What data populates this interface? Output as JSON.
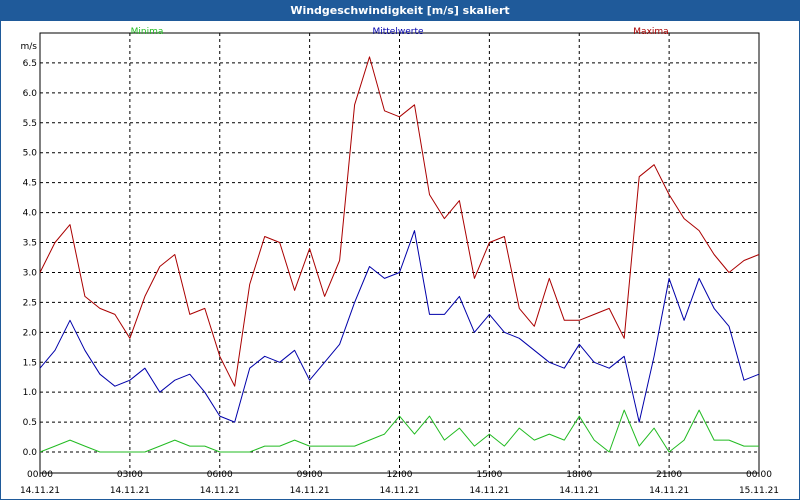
{
  "window": {
    "title": "Windgeschwindigkeit [m/s] skaliert"
  },
  "colors": {
    "titlebar": "#1f5a9a",
    "minima": "#22bb22",
    "mittelwerte": "#0000aa",
    "maxima": "#aa0000",
    "grid": "#000000"
  },
  "chart_data": {
    "type": "line",
    "title": "Windgeschwindigkeit [m/s] skaliert",
    "ylabel": "m/s",
    "ylim": [
      -0.35,
      7.0
    ],
    "yticks": [
      "0.0",
      "0.5",
      "1.0",
      "1.5",
      "2.0",
      "2.5",
      "3.0",
      "3.5",
      "4.0",
      "4.5",
      "5.0",
      "5.5",
      "6.0",
      "6.5"
    ],
    "xlim": [
      0,
      24
    ],
    "xticks": [
      {
        "time": "00:00",
        "date": "14.11.21"
      },
      {
        "time": "03:00",
        "date": "14.11.21"
      },
      {
        "time": "06:00",
        "date": "14.11.21"
      },
      {
        "time": "09:00",
        "date": "14.11.21"
      },
      {
        "time": "12:00",
        "date": "14.11.21"
      },
      {
        "time": "15:00",
        "date": "14.11.21"
      },
      {
        "time": "18:00",
        "date": "14.11.21"
      },
      {
        "time": "21:00",
        "date": "14.11.21"
      },
      {
        "time": "00:00",
        "date": "15.11.21"
      }
    ],
    "grid": true,
    "legend_position": "top",
    "x_hours": [
      0,
      0.5,
      1,
      1.5,
      2,
      2.5,
      3,
      3.5,
      4,
      4.5,
      5,
      5.5,
      6,
      6.5,
      7,
      7.5,
      8,
      8.5,
      9,
      9.5,
      10,
      10.5,
      11,
      11.5,
      12,
      12.5,
      13,
      13.5,
      14,
      14.5,
      15,
      15.5,
      16,
      16.5,
      17,
      17.5,
      18,
      18.5,
      19,
      19.5,
      20,
      20.5,
      21,
      21.5,
      22,
      22.5,
      23,
      23.5,
      24
    ],
    "series": [
      {
        "name": "Minima",
        "color": "#22bb22",
        "values": [
          0.0,
          0.1,
          0.2,
          0.1,
          0.0,
          0.0,
          0.0,
          0.0,
          0.1,
          0.2,
          0.1,
          0.1,
          0.0,
          0.0,
          0.0,
          0.1,
          0.1,
          0.2,
          0.1,
          0.1,
          0.1,
          0.1,
          0.2,
          0.3,
          0.6,
          0.3,
          0.6,
          0.2,
          0.4,
          0.1,
          0.3,
          0.1,
          0.4,
          0.2,
          0.3,
          0.2,
          0.6,
          0.2,
          0.0,
          0.7,
          0.1,
          0.4,
          0.0,
          0.2,
          0.7,
          0.2,
          0.2,
          0.1,
          0.1
        ]
      },
      {
        "name": "Mittelwerte",
        "color": "#0000aa",
        "values": [
          1.4,
          1.7,
          2.2,
          1.7,
          1.3,
          1.1,
          1.2,
          1.4,
          1.0,
          1.2,
          1.3,
          1.0,
          0.6,
          0.5,
          1.4,
          1.6,
          1.5,
          1.7,
          1.2,
          1.5,
          1.8,
          2.5,
          3.1,
          2.9,
          3.0,
          3.7,
          2.3,
          2.3,
          2.6,
          2.0,
          2.3,
          2.0,
          1.9,
          1.7,
          1.5,
          1.4,
          1.8,
          1.5,
          1.4,
          1.6,
          0.5,
          1.6,
          2.9,
          2.2,
          2.9,
          2.4,
          2.1,
          1.2,
          1.3
        ]
      },
      {
        "name": "Maxima",
        "color": "#aa0000",
        "values": [
          3.0,
          3.5,
          3.8,
          2.6,
          2.4,
          2.3,
          1.9,
          2.6,
          3.1,
          3.3,
          2.3,
          2.4,
          1.6,
          1.1,
          2.8,
          3.6,
          3.5,
          2.7,
          3.4,
          2.6,
          3.2,
          5.8,
          6.6,
          5.7,
          5.6,
          5.8,
          4.3,
          3.9,
          4.2,
          2.9,
          3.5,
          3.6,
          2.4,
          2.1,
          2.9,
          2.2,
          2.2,
          2.3,
          2.4,
          1.9,
          4.6,
          4.8,
          4.3,
          3.9,
          3.7,
          3.3,
          3.0,
          3.2,
          3.3
        ]
      }
    ]
  }
}
